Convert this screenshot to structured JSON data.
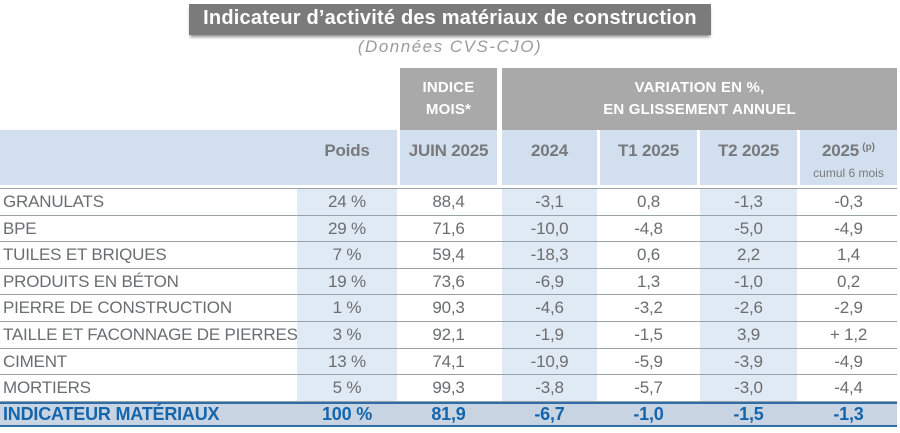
{
  "title": "Indicateur d’activité des matériaux de construction",
  "subtitle": "(Données CVS-CJO)",
  "colors": {
    "title_bg": "#7b7b7b",
    "group_header_bg": "#a9a9a9",
    "column_header_bg": "#d2dfee",
    "stripe_column_bg": "#e0eaf4",
    "total_row_bg": "#c8d4e2",
    "total_border": "#2f6da8",
    "total_text": "#1565ad",
    "body_text": "#6b6d70"
  },
  "header": {
    "indice_line1": "INDICE",
    "indice_line2": "MOIS*",
    "variation_line1": "VARIATION EN %,",
    "variation_line2": "EN GLISSEMENT ANNUEL",
    "col_poids": "Poids",
    "col_juin": "JUIN 2025",
    "col_2024": "2024",
    "col_t1": "T1 2025",
    "col_t2": "T2 2025",
    "col_2025_year": "2025",
    "col_2025_sup": "(p)",
    "col_2025_sub": "cumul 6 mois"
  },
  "chart_data": {
    "type": "table",
    "title": "Indicateur d’activité des matériaux de construction",
    "subtitle": "(Données CVS-CJO)",
    "column_groups": [
      "INDICE MOIS*",
      "VARIATION EN %, EN GLISSEMENT ANNUEL"
    ],
    "columns": [
      "Poids",
      "JUIN 2025",
      "2024",
      "T1 2025",
      "T2 2025",
      "2025 (p) cumul 6 mois"
    ],
    "rows": [
      {
        "label": "GRANULATS",
        "poids": "24 %",
        "juin2025": "88,4",
        "y2024": "-3,1",
        "t1_2025": "0,8",
        "t2_2025": "-1,3",
        "cumul6mois": "-0,3"
      },
      {
        "label": "BPE",
        "poids": "29 %",
        "juin2025": "71,6",
        "y2024": "-10,0",
        "t1_2025": "-4,8",
        "t2_2025": "-5,0",
        "cumul6mois": "-4,9"
      },
      {
        "label": "TUILES ET BRIQUES",
        "poids": "7 %",
        "juin2025": "59,4",
        "y2024": "-18,3",
        "t1_2025": "0,6",
        "t2_2025": "2,2",
        "cumul6mois": "1,4"
      },
      {
        "label": "PRODUITS EN BÉTON",
        "poids": "19 %",
        "juin2025": "73,6",
        "y2024": "-6,9",
        "t1_2025": "1,3",
        "t2_2025": "-1,0",
        "cumul6mois": "0,2"
      },
      {
        "label": "PIERRE DE CONSTRUCTION",
        "poids": "1 %",
        "juin2025": "90,3",
        "y2024": "-4,6",
        "t1_2025": "-3,2",
        "t2_2025": "-2,6",
        "cumul6mois": "-2,9"
      },
      {
        "label": "TAILLE ET FACONNAGE DE PIERRES",
        "poids": "3 %",
        "juin2025": "92,1",
        "y2024": "-1,9",
        "t1_2025": "-1,5",
        "t2_2025": "3,9",
        "cumul6mois": "+ 1,2"
      },
      {
        "label": "CIMENT",
        "poids": "13 %",
        "juin2025": "74,1",
        "y2024": "-10,9",
        "t1_2025": "-5,9",
        "t2_2025": "-3,9",
        "cumul6mois": "-4,9"
      },
      {
        "label": "MORTIERS",
        "poids": "5 %",
        "juin2025": "99,3",
        "y2024": "-3,8",
        "t1_2025": "-5,7",
        "t2_2025": "-3,0",
        "cumul6mois": "-4,4"
      }
    ],
    "total": {
      "label": "INDICATEUR MATÉRIAUX",
      "poids": "100 %",
      "juin2025": "81,9",
      "y2024": "-6,7",
      "t1_2025": "-1,0",
      "t2_2025": "-1,5",
      "cumul6mois": "-1,3"
    }
  }
}
